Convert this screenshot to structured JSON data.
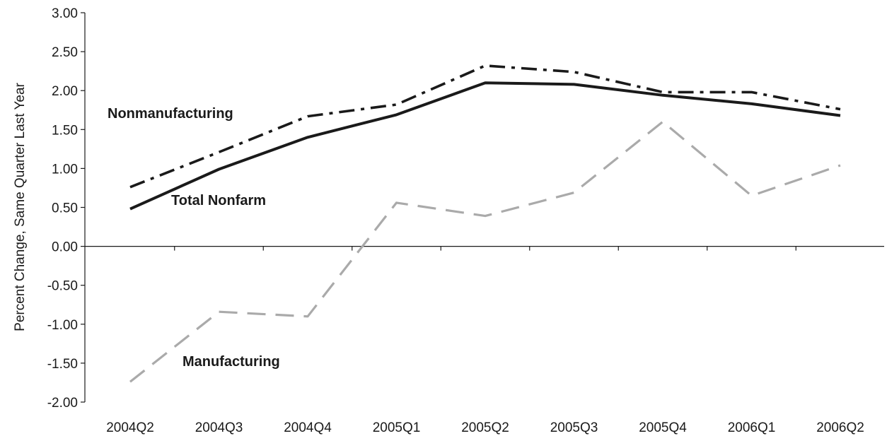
{
  "chart_data": {
    "type": "line",
    "title": "",
    "xlabel": "",
    "ylabel": "Percent Change, Same Quarter Last Year",
    "categories": [
      "2004Q2",
      "2004Q3",
      "2004Q4",
      "2005Q1",
      "2005Q2",
      "2005Q3",
      "2005Q4",
      "2006Q1",
      "2006Q2"
    ],
    "ylim": [
      -2.0,
      3.0
    ],
    "yticks": [
      "3.00",
      "2.50",
      "2.00",
      "1.50",
      "1.00",
      "0.50",
      "0.00",
      "-0.50",
      "-1.00",
      "-1.50",
      "-2.00"
    ],
    "grid": false,
    "legend": "none (series labeled directly on plot)",
    "series": [
      {
        "name": "Nonmanufacturing",
        "style": "dash-dot",
        "color": "#1a1a1a",
        "values": [
          0.76,
          1.21,
          1.67,
          1.82,
          2.32,
          2.24,
          1.98,
          1.98,
          1.76
        ]
      },
      {
        "name": "Total Nonfarm",
        "style": "solid",
        "color": "#1a1a1a",
        "values": [
          0.48,
          0.99,
          1.4,
          1.69,
          2.1,
          2.08,
          1.94,
          1.83,
          1.68
        ]
      },
      {
        "name": "Manufacturing",
        "style": "dashed",
        "color": "#aaaaaa",
        "values": [
          -1.74,
          -0.84,
          -0.9,
          0.56,
          0.39,
          0.69,
          1.6,
          0.65,
          1.04
        ]
      }
    ]
  }
}
